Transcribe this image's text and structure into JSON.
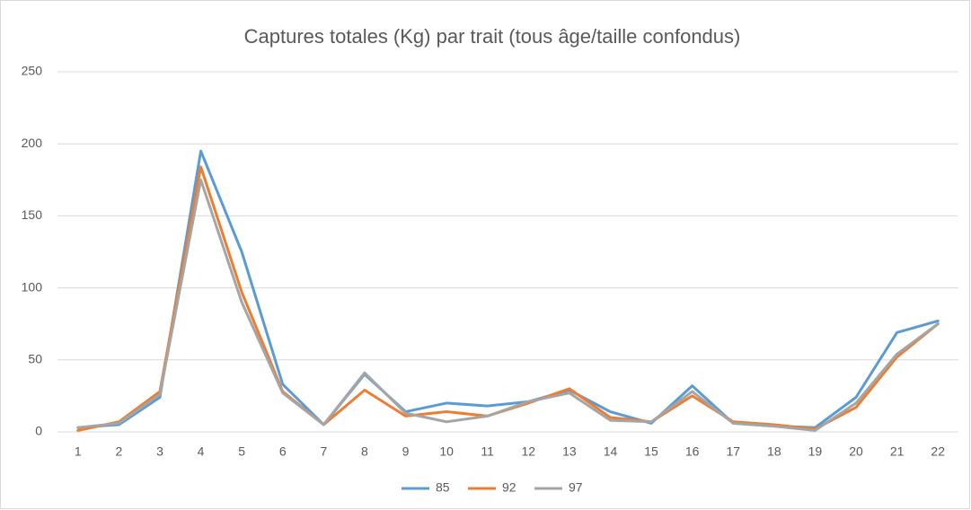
{
  "chart_data": {
    "type": "line",
    "title": "Captures totales (Kg) par trait (tous âge/taille confondus)",
    "categories": [
      "1",
      "2",
      "3",
      "4",
      "5",
      "6",
      "7",
      "8",
      "9",
      "10",
      "11",
      "12",
      "13",
      "14",
      "15",
      "16",
      "17",
      "18",
      "19",
      "20",
      "21",
      "22"
    ],
    "series": [
      {
        "name": "85",
        "color": "#5b9bd5",
        "values": [
          3,
          5,
          24,
          195,
          125,
          33,
          5,
          40,
          14,
          20,
          18,
          21,
          29,
          14,
          6,
          32,
          6,
          4,
          3,
          24,
          69,
          77
        ]
      },
      {
        "name": "92",
        "color": "#ed7d31",
        "values": [
          1,
          7,
          28,
          184,
          97,
          28,
          5,
          29,
          11,
          14,
          11,
          20,
          30,
          10,
          7,
          25,
          7,
          5,
          2,
          17,
          52,
          75
        ]
      },
      {
        "name": "97",
        "color": "#a5a5a5",
        "values": [
          3,
          6,
          26,
          175,
          90,
          27,
          5,
          41,
          13,
          7,
          11,
          21,
          27,
          8,
          7,
          28,
          6,
          4,
          1,
          20,
          54,
          75
        ]
      }
    ],
    "ylim": [
      0,
      250
    ],
    "yticks": [
      0,
      50,
      100,
      150,
      200,
      250
    ],
    "grid": true,
    "legend": "bottom"
  }
}
